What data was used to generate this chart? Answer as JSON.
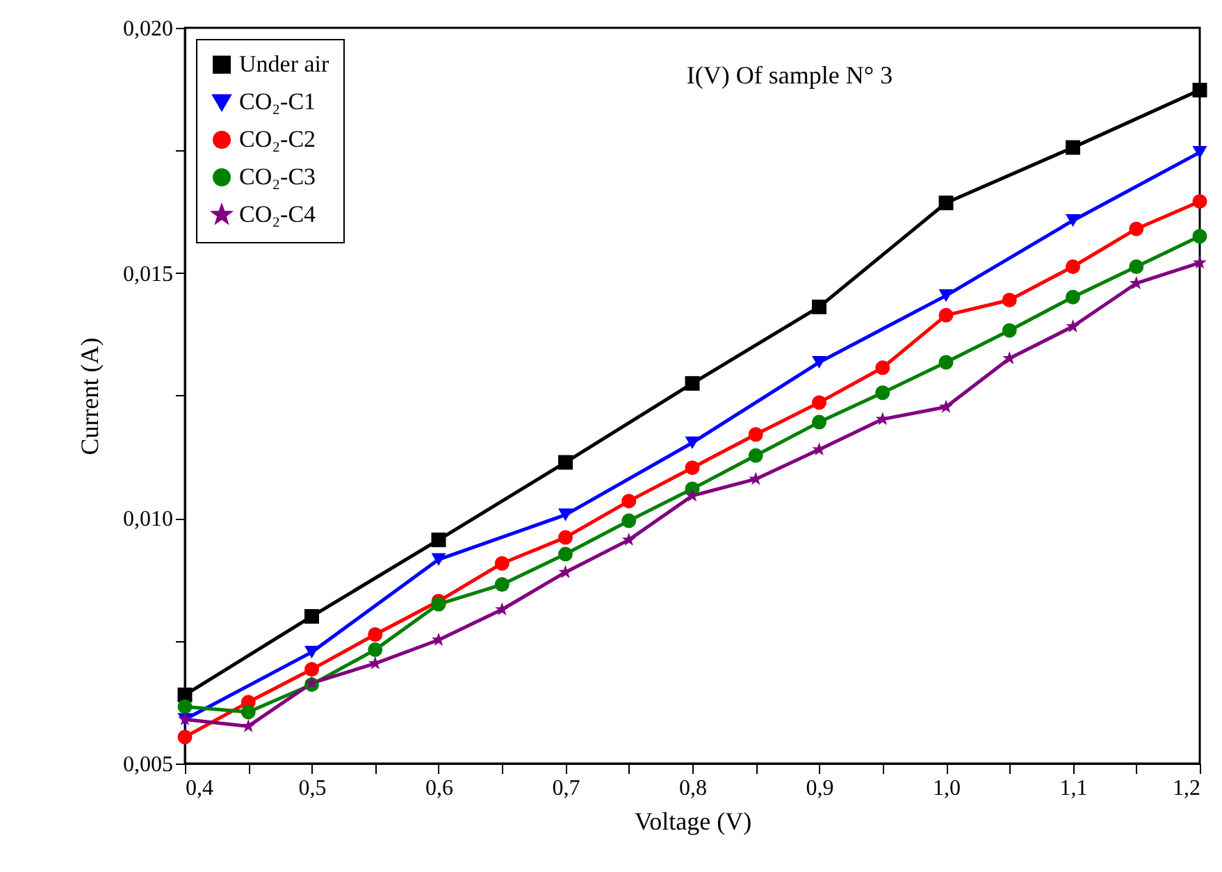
{
  "chart_data": {
    "type": "line",
    "title": "I(V) Of sample N° 3",
    "xlabel": "Voltage (V)",
    "ylabel": "Current (A)",
    "x": [
      0.4,
      0.45,
      0.5,
      0.55,
      0.6,
      0.65,
      0.7,
      0.75,
      0.8,
      0.85,
      0.9,
      0.95,
      1.0,
      1.05,
      1.1,
      1.15,
      1.2
    ],
    "series": [
      {
        "name": "Under air",
        "color": "#000000",
        "marker": "square",
        "x": [
          0.4,
          0.5,
          0.6,
          0.7,
          0.8,
          0.9,
          1.0,
          1.1,
          1.2
        ],
        "values": [
          0.0064,
          0.008,
          0.00956,
          0.01114,
          0.01275,
          0.01431,
          0.01643,
          0.01756,
          0.01873
        ]
      },
      {
        "name": "CO₂-C1",
        "color": "#0000ff",
        "marker": "triangle",
        "x": [
          0.4,
          0.5,
          0.6,
          0.7,
          0.8,
          0.9,
          1.0,
          1.1,
          1.2
        ],
        "values": [
          0.0059,
          0.00727,
          0.00916,
          0.01007,
          0.01154,
          0.01318,
          0.01454,
          0.01607,
          0.01746
        ]
      },
      {
        "name": "CO₂-C2",
        "color": "#ff0000",
        "marker": "circle",
        "values": [
          0.00554,
          0.00625,
          0.00692,
          0.00763,
          0.00831,
          0.00908,
          0.00961,
          0.01035,
          0.01103,
          0.01171,
          0.01236,
          0.01307,
          0.01414,
          0.01445,
          0.01513,
          0.0159,
          0.01646
        ]
      },
      {
        "name": "CO₂-C3",
        "color": "#008000",
        "marker": "circle",
        "values": [
          0.00616,
          0.00605,
          0.00661,
          0.00732,
          0.00825,
          0.00865,
          0.00927,
          0.00995,
          0.0106,
          0.01128,
          0.01196,
          0.01256,
          0.01318,
          0.01383,
          0.01451,
          0.01513,
          0.01575
        ]
      },
      {
        "name": "CO₂-C4",
        "color": "#800080",
        "marker": "star",
        "values": [
          0.0059,
          0.00576,
          0.00664,
          0.00704,
          0.00752,
          0.00814,
          0.0089,
          0.00956,
          0.01046,
          0.0108,
          0.0114,
          0.01202,
          0.01227,
          0.01326,
          0.01391,
          0.01479,
          0.01521
        ]
      }
    ],
    "xlim": [
      0.4,
      1.2
    ],
    "xticks": [
      {
        "value": 0.4,
        "label": "0,4"
      },
      {
        "value": 0.45,
        "label": null
      },
      {
        "value": 0.5,
        "label": "0,5"
      },
      {
        "value": 0.55,
        "label": null
      },
      {
        "value": 0.6,
        "label": "0,6"
      },
      {
        "value": 0.65,
        "label": null
      },
      {
        "value": 0.7,
        "label": "0,7"
      },
      {
        "value": 0.75,
        "label": null
      },
      {
        "value": 0.8,
        "label": "0,8"
      },
      {
        "value": 0.85,
        "label": null
      },
      {
        "value": 0.9,
        "label": "0,9"
      },
      {
        "value": 0.95,
        "label": null
      },
      {
        "value": 1.0,
        "label": "1,0"
      },
      {
        "value": 1.05,
        "label": null
      },
      {
        "value": 1.1,
        "label": "1,1"
      },
      {
        "value": 1.15,
        "label": null
      },
      {
        "value": 1.2,
        "label": "1,2"
      }
    ],
    "ylim": [
      0.005,
      0.02
    ],
    "yticks": [
      {
        "value": 0.005,
        "label": "0,005"
      },
      {
        "value": 0.0075,
        "label": null
      },
      {
        "value": 0.01,
        "label": "0,010"
      },
      {
        "value": 0.0125,
        "label": null
      },
      {
        "value": 0.015,
        "label": "0,015"
      },
      {
        "value": 0.0175,
        "label": null
      },
      {
        "value": 0.02,
        "label": "0,020"
      }
    ],
    "grid": false,
    "legend": "top left",
    "line_style": "solid"
  }
}
